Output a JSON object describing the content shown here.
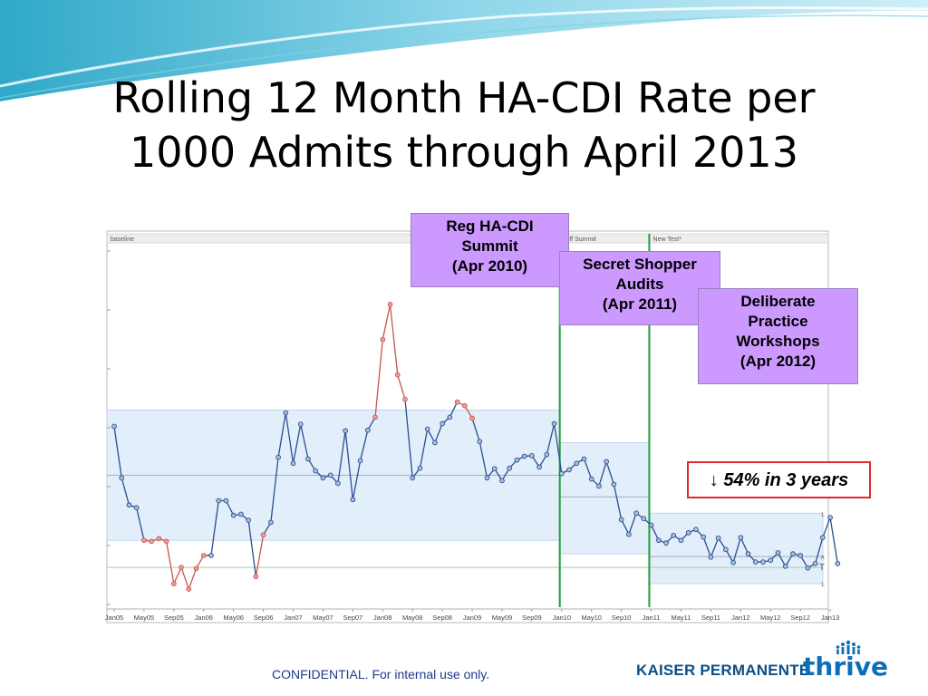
{
  "slide": {
    "title_line1": "Rolling 12 Month HA-CDI Rate per",
    "title_line2": "1000 Admits through April 2013",
    "footer": "CONFIDENTIAL.  For internal use only.",
    "logo_left": "KAISER PERMANENTE.",
    "logo_right": "thrive"
  },
  "callouts": [
    {
      "id": "reg",
      "lines": [
        "Reg HA-CDI",
        "Summit",
        "(Apr 2010)"
      ]
    },
    {
      "id": "secret",
      "lines": [
        "Secret Shopper",
        "Audits",
        "(Apr 2011)"
      ]
    },
    {
      "id": "deliberate",
      "lines": [
        "Deliberate",
        "Practice",
        "Workshops",
        "(Apr 2012)"
      ]
    }
  ],
  "reduction_text": "↓ 54% in 3 years",
  "colors": {
    "line_normal": "#2a4f8f",
    "line_signal": "#c8554f",
    "band": "#e2eefa",
    "phase_line": "#1e9e3a",
    "callout": "#cc99ff",
    "reduction_border": "#e0282e"
  },
  "chart_data": {
    "type": "line",
    "phase_labels": [
      "baseline",
      "Diff Summit",
      "New Test*"
    ],
    "phase_start_index": [
      0,
      60,
      72
    ],
    "x_tick_labels": [
      "Jan05",
      "May05",
      "Sep05",
      "Jan06",
      "May06",
      "Sep06",
      "Jan07",
      "May07",
      "Sep07",
      "Jan08",
      "May08",
      "Sep08",
      "Jan09",
      "May09",
      "Sep09",
      "Jan10",
      "May10",
      "Sep10",
      "Jan11",
      "May11",
      "Sep11",
      "Jan12",
      "May12",
      "Sep12",
      "Jan13"
    ],
    "right_limit_labels": [
      "L",
      "X",
      "T",
      "L"
    ],
    "ylim": [
      0,
      65
    ],
    "series": [
      {
        "values": [
          33,
          23.5,
          18.5,
          18,
          12,
          11.8,
          12.3,
          11.8,
          4,
          7,
          3,
          6.8,
          9.2,
          9.2,
          19.3,
          19.3,
          16.6,
          16.8,
          15.7,
          5.3,
          13,
          15.3,
          27.3,
          35.5,
          26.2,
          33.4,
          27,
          24.8,
          23.5,
          24,
          22.5,
          32.2,
          19.5,
          26.7,
          32.3,
          34.7,
          49,
          55.5,
          42.5,
          38,
          23.5,
          25.3,
          32.5,
          30,
          33.5,
          34.7,
          37.5,
          36.8,
          34.5,
          30.2,
          23.5,
          25.2,
          23,
          25.3,
          26.8,
          27.5,
          27.6,
          25.5,
          27.8,
          33.5,
          24.3,
          25,
          26.2,
          27,
          23.3,
          22,
          26.5,
          22.3,
          15.8,
          13.1,
          17,
          16,
          14.8,
          12,
          11.5,
          12.9,
          12,
          13.4,
          14,
          12.6,
          8.9,
          12.4,
          10.3,
          7.9,
          12.5,
          9.5,
          8,
          8,
          8.3,
          9.7,
          7.2,
          9.5,
          9.2,
          6.9,
          7.7,
          12.5,
          16.2,
          7.7
        ],
        "signal_ranges": [
          [
            4,
            12
          ],
          [
            19,
            20
          ],
          [
            35,
            39
          ],
          [
            46,
            48
          ]
        ]
      }
    ],
    "bands": [
      {
        "start": 0,
        "end": 60,
        "lower": 12,
        "upper": 36
      },
      {
        "start": 60,
        "end": 72,
        "lower": 9.5,
        "upper": 30
      },
      {
        "start": 72,
        "end": 97,
        "lower": 4,
        "upper": 17
      }
    ],
    "center_lines": [
      {
        "start": 0,
        "end": 60,
        "value": 24
      },
      {
        "start": 60,
        "end": 72,
        "value": 20
      },
      {
        "start": 72,
        "end": 97,
        "value": 9
      }
    ],
    "reference_line": 7,
    "grid": false
  }
}
